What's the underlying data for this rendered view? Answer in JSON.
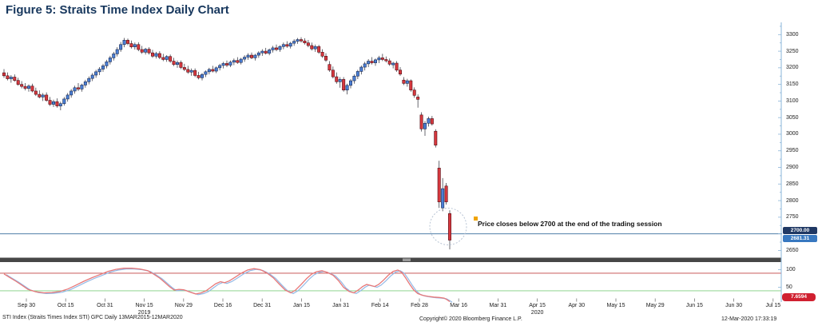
{
  "title": "Figure 5: Straits Time Index Daily Chart",
  "annotation": {
    "text": "Price closes below 2700 at the end of the trading session",
    "marker_color": "#f0a400"
  },
  "price_axis": {
    "tick_labels": [
      3300,
      3250,
      3200,
      3150,
      3100,
      3050,
      3000,
      2950,
      2900,
      2850,
      2800,
      2750,
      2650
    ],
    "alert_badge": "2700.00",
    "last_price_badge": "2681.31"
  },
  "date_axis": {
    "labels": [
      "Sep 30",
      "Oct 15",
      "Oct 31",
      "Nov 15",
      "Nov 29",
      "Dec 16",
      "Dec 31",
      "Jan 15",
      "Jan 31",
      "Feb 14",
      "Feb 28",
      "Mar 16",
      "Mar 31",
      "Apr 15",
      "Apr 30",
      "May 15",
      "May 29",
      "Jun 15",
      "Jun 30",
      "Jul 15"
    ],
    "year_markers": [
      {
        "index": 3,
        "label": "2019"
      },
      {
        "index": 13,
        "label": "2020"
      }
    ]
  },
  "oscillator": {
    "ticks": [
      100,
      50
    ],
    "last_value_badge": "7.6594"
  },
  "footer": {
    "left": "STI Index (Straits Times Index STI) GPC  Daily 13MAR2015-12MAR2020",
    "center": "Copyright© 2020 Bloomberg Finance L.P.",
    "right": "12-Mar-2020 17:33:19"
  },
  "colors": {
    "title": "#17375d",
    "candle_up": "#4a7fd6",
    "candle_up_border": "#1c2b52",
    "candle_down": "#d7383e",
    "candle_down_border": "#551019",
    "wick": "#2a2a35",
    "hline_2700": "#4f7ea8",
    "axis": "#8ab4d8",
    "separator": "#474747",
    "separator_handle": "#9a9a9a",
    "osc_line_fast": "#e87878",
    "osc_line_slow": "#93b9e6",
    "osc_overbought_line": "#c24040",
    "osc_oversold_line": "#7fcf7f",
    "alert_badge_bg": "#1f3864",
    "last_price_badge_bg": "#3878c0",
    "osc_badge_bg": "#d02030",
    "circle_annotation": "#b8c4d4"
  },
  "chart_data": {
    "type": "candlestick",
    "title": "Straits Time Index Daily Chart",
    "price_panel": {
      "ylim": [
        2640,
        3310
      ],
      "tick_step": 50,
      "alert_hline": 2700,
      "last_close": 2681.31,
      "candles_ohlc": [
        [
          3185,
          3196,
          3170,
          3176
        ],
        [
          3176,
          3186,
          3162,
          3167
        ],
        [
          3167,
          3178,
          3155,
          3172
        ],
        [
          3172,
          3180,
          3158,
          3162
        ],
        [
          3162,
          3170,
          3146,
          3150
        ],
        [
          3150,
          3160,
          3138,
          3144
        ],
        [
          3144,
          3154,
          3132,
          3138
        ],
        [
          3138,
          3150,
          3128,
          3145
        ],
        [
          3145,
          3152,
          3126,
          3130
        ],
        [
          3130,
          3140,
          3115,
          3120
        ],
        [
          3120,
          3132,
          3108,
          3112
        ],
        [
          3112,
          3124,
          3100,
          3118
        ],
        [
          3118,
          3126,
          3098,
          3102
        ],
        [
          3102,
          3112,
          3085,
          3090
        ],
        [
          3090,
          3104,
          3082,
          3098
        ],
        [
          3098,
          3108,
          3080,
          3085
        ],
        [
          3085,
          3098,
          3072,
          3092
        ],
        [
          3092,
          3112,
          3086,
          3106
        ],
        [
          3106,
          3124,
          3098,
          3118
        ],
        [
          3118,
          3136,
          3110,
          3130
        ],
        [
          3130,
          3146,
          3122,
          3140
        ],
        [
          3140,
          3154,
          3130,
          3136
        ],
        [
          3136,
          3152,
          3128,
          3148
        ],
        [
          3148,
          3164,
          3140,
          3158
        ],
        [
          3158,
          3174,
          3150,
          3168
        ],
        [
          3168,
          3184,
          3160,
          3178
        ],
        [
          3178,
          3194,
          3170,
          3188
        ],
        [
          3188,
          3202,
          3178,
          3196
        ],
        [
          3196,
          3212,
          3188,
          3206
        ],
        [
          3206,
          3224,
          3198,
          3218
        ],
        [
          3218,
          3236,
          3210,
          3230
        ],
        [
          3230,
          3248,
          3222,
          3242
        ],
        [
          3242,
          3262,
          3234,
          3255
        ],
        [
          3255,
          3278,
          3248,
          3270
        ],
        [
          3270,
          3290,
          3262,
          3283
        ],
        [
          3283,
          3288,
          3268,
          3273
        ],
        [
          3273,
          3282,
          3258,
          3263
        ],
        [
          3263,
          3276,
          3255,
          3270
        ],
        [
          3270,
          3277,
          3250,
          3255
        ],
        [
          3255,
          3266,
          3242,
          3247
        ],
        [
          3247,
          3260,
          3240,
          3256
        ],
        [
          3256,
          3262,
          3240,
          3245
        ],
        [
          3245,
          3254,
          3230,
          3235
        ],
        [
          3235,
          3248,
          3228,
          3243
        ],
        [
          3243,
          3250,
          3226,
          3231
        ],
        [
          3231,
          3242,
          3220,
          3225
        ],
        [
          3225,
          3238,
          3218,
          3234
        ],
        [
          3234,
          3240,
          3215,
          3220
        ],
        [
          3220,
          3230,
          3205,
          3210
        ],
        [
          3210,
          3222,
          3200,
          3216
        ],
        [
          3216,
          3222,
          3196,
          3201
        ],
        [
          3201,
          3212,
          3190,
          3195
        ],
        [
          3195,
          3206,
          3182,
          3187
        ],
        [
          3187,
          3198,
          3176,
          3192
        ],
        [
          3192,
          3198,
          3172,
          3177
        ],
        [
          3177,
          3188,
          3165,
          3170
        ],
        [
          3170,
          3184,
          3162,
          3180
        ],
        [
          3180,
          3192,
          3172,
          3188
        ],
        [
          3188,
          3200,
          3180,
          3195
        ],
        [
          3195,
          3206,
          3186,
          3190
        ],
        [
          3190,
          3204,
          3184,
          3200
        ],
        [
          3200,
          3212,
          3192,
          3207
        ],
        [
          3207,
          3218,
          3198,
          3213
        ],
        [
          3213,
          3222,
          3202,
          3208
        ],
        [
          3208,
          3222,
          3202,
          3217
        ],
        [
          3217,
          3228,
          3208,
          3222
        ],
        [
          3222,
          3232,
          3212,
          3216
        ],
        [
          3216,
          3230,
          3210,
          3226
        ],
        [
          3226,
          3238,
          3218,
          3232
        ],
        [
          3232,
          3244,
          3224,
          3238
        ],
        [
          3238,
          3246,
          3226,
          3230
        ],
        [
          3230,
          3242,
          3222,
          3238
        ],
        [
          3238,
          3250,
          3230,
          3245
        ],
        [
          3245,
          3256,
          3236,
          3250
        ],
        [
          3250,
          3260,
          3240,
          3244
        ],
        [
          3244,
          3258,
          3238,
          3254
        ],
        [
          3254,
          3266,
          3246,
          3260
        ],
        [
          3260,
          3270,
          3250,
          3255
        ],
        [
          3255,
          3268,
          3248,
          3264
        ],
        [
          3264,
          3276,
          3256,
          3270
        ],
        [
          3270,
          3280,
          3260,
          3265
        ],
        [
          3265,
          3278,
          3258,
          3274
        ],
        [
          3274,
          3286,
          3266,
          3280
        ],
        [
          3280,
          3290,
          3272,
          3285
        ],
        [
          3285,
          3292,
          3276,
          3281
        ],
        [
          3281,
          3289,
          3270,
          3275
        ],
        [
          3275,
          3284,
          3262,
          3267
        ],
        [
          3267,
          3276,
          3252,
          3257
        ],
        [
          3257,
          3270,
          3248,
          3264
        ],
        [
          3264,
          3269,
          3242,
          3247
        ],
        [
          3247,
          3256,
          3230,
          3235
        ],
        [
          3235,
          3244,
          3218,
          3223
        ],
        [
          3210,
          3220,
          3188,
          3193
        ],
        [
          3193,
          3204,
          3168,
          3173
        ],
        [
          3173,
          3186,
          3152,
          3158
        ],
        [
          3158,
          3172,
          3140,
          3165
        ],
        [
          3165,
          3172,
          3128,
          3133
        ],
        [
          3133,
          3152,
          3120,
          3147
        ],
        [
          3147,
          3166,
          3138,
          3161
        ],
        [
          3161,
          3180,
          3152,
          3175
        ],
        [
          3175,
          3194,
          3166,
          3189
        ],
        [
          3189,
          3207,
          3180,
          3202
        ],
        [
          3202,
          3218,
          3192,
          3212
        ],
        [
          3212,
          3226,
          3202,
          3220
        ],
        [
          3220,
          3232,
          3210,
          3215
        ],
        [
          3215,
          3228,
          3206,
          3224
        ],
        [
          3224,
          3236,
          3214,
          3230
        ],
        [
          3230,
          3242,
          3220,
          3225
        ],
        [
          3225,
          3234,
          3216,
          3221
        ],
        [
          3221,
          3228,
          3206,
          3211
        ],
        [
          3209,
          3218,
          3198,
          3214
        ],
        [
          3214,
          3220,
          3188,
          3193
        ],
        [
          3193,
          3202,
          3176,
          3181
        ],
        [
          3163,
          3172,
          3148,
          3153
        ],
        [
          3153,
          3167,
          3143,
          3161
        ],
        [
          3161,
          3165,
          3128,
          3133
        ],
        [
          3133,
          3141,
          3110,
          3117
        ],
        [
          3112,
          3120,
          3080,
          3105
        ],
        [
          3058,
          3066,
          3008,
          3016
        ],
        [
          3016,
          3040,
          2995,
          3033
        ],
        [
          3033,
          3053,
          3023,
          3047
        ],
        [
          3047,
          3055,
          3026,
          3031
        ],
        [
          3009,
          3015,
          2960,
          2967
        ],
        [
          2898,
          2920,
          2778,
          2796
        ],
        [
          2778,
          2868,
          2768,
          2836
        ],
        [
          2844,
          2853,
          2788,
          2796
        ],
        [
          2761,
          2771,
          2653,
          2681
        ]
      ]
    },
    "oscillator_panel": {
      "ticks": [
        100,
        50
      ],
      "overbought": 90,
      "oversold": 40,
      "last_value": 7.6594,
      "series_x_value": [
        [
          5,
          88
        ],
        [
          12,
          78
        ],
        [
          20,
          67
        ],
        [
          28,
          55
        ],
        [
          35,
          44
        ],
        [
          45,
          37
        ],
        [
          55,
          34
        ],
        [
          65,
          35
        ],
        [
          75,
          38
        ],
        [
          85,
          45
        ],
        [
          95,
          56
        ],
        [
          105,
          67
        ],
        [
          115,
          77
        ],
        [
          125,
          86
        ],
        [
          135,
          95
        ],
        [
          145,
          101
        ],
        [
          155,
          104
        ],
        [
          165,
          104
        ],
        [
          175,
          102
        ],
        [
          185,
          97
        ],
        [
          192,
          88
        ],
        [
          200,
          76
        ],
        [
          206,
          64
        ],
        [
          212,
          52
        ],
        [
          218,
          42
        ],
        [
          224,
          44
        ],
        [
          230,
          43
        ],
        [
          237,
          37
        ],
        [
          245,
          31
        ],
        [
          252,
          34
        ],
        [
          258,
          40
        ],
        [
          264,
          50
        ],
        [
          270,
          60
        ],
        [
          276,
          66
        ],
        [
          281,
          63
        ],
        [
          287,
          68
        ],
        [
          294,
          78
        ],
        [
          302,
          90
        ],
        [
          310,
          99
        ],
        [
          318,
          103
        ],
        [
          326,
          100
        ],
        [
          334,
          91
        ],
        [
          342,
          77
        ],
        [
          350,
          58
        ],
        [
          357,
          42
        ],
        [
          364,
          34
        ],
        [
          370,
          42
        ],
        [
          377,
          58
        ],
        [
          384,
          75
        ],
        [
          390,
          87
        ],
        [
          396,
          94
        ],
        [
          403,
          97
        ],
        [
          410,
          92
        ],
        [
          417,
          84
        ],
        [
          424,
          68
        ],
        [
          430,
          50
        ],
        [
          437,
          38
        ],
        [
          443,
          34
        ],
        [
          449,
          43
        ],
        [
          454,
          52
        ],
        [
          459,
          58
        ],
        [
          464,
          55
        ],
        [
          469,
          52
        ],
        [
          474,
          58
        ],
        [
          480,
          70
        ],
        [
          486,
          84
        ],
        [
          492,
          95
        ],
        [
          498,
          99
        ],
        [
          503,
          92
        ],
        [
          508,
          76
        ],
        [
          513,
          58
        ],
        [
          518,
          42
        ],
        [
          523,
          32
        ],
        [
          529,
          27
        ],
        [
          536,
          24
        ],
        [
          543,
          22
        ],
        [
          550,
          21
        ],
        [
          556,
          19
        ],
        [
          560,
          14
        ],
        [
          563,
          9
        ]
      ]
    },
    "x_axis": {
      "tick_labels": [
        "Sep 30",
        "Oct 15",
        "Oct 31",
        "Nov 15",
        "Nov 29",
        "Dec 16",
        "Dec 31",
        "Jan 15",
        "Jan 31",
        "Feb 14",
        "Feb 28",
        "Mar 16",
        "Mar 31",
        "Apr 15",
        "Apr 30",
        "May 15",
        "May 29",
        "Jun 15",
        "Jun 30",
        "Jul 15"
      ],
      "years": [
        "2019",
        "2020"
      ]
    }
  }
}
